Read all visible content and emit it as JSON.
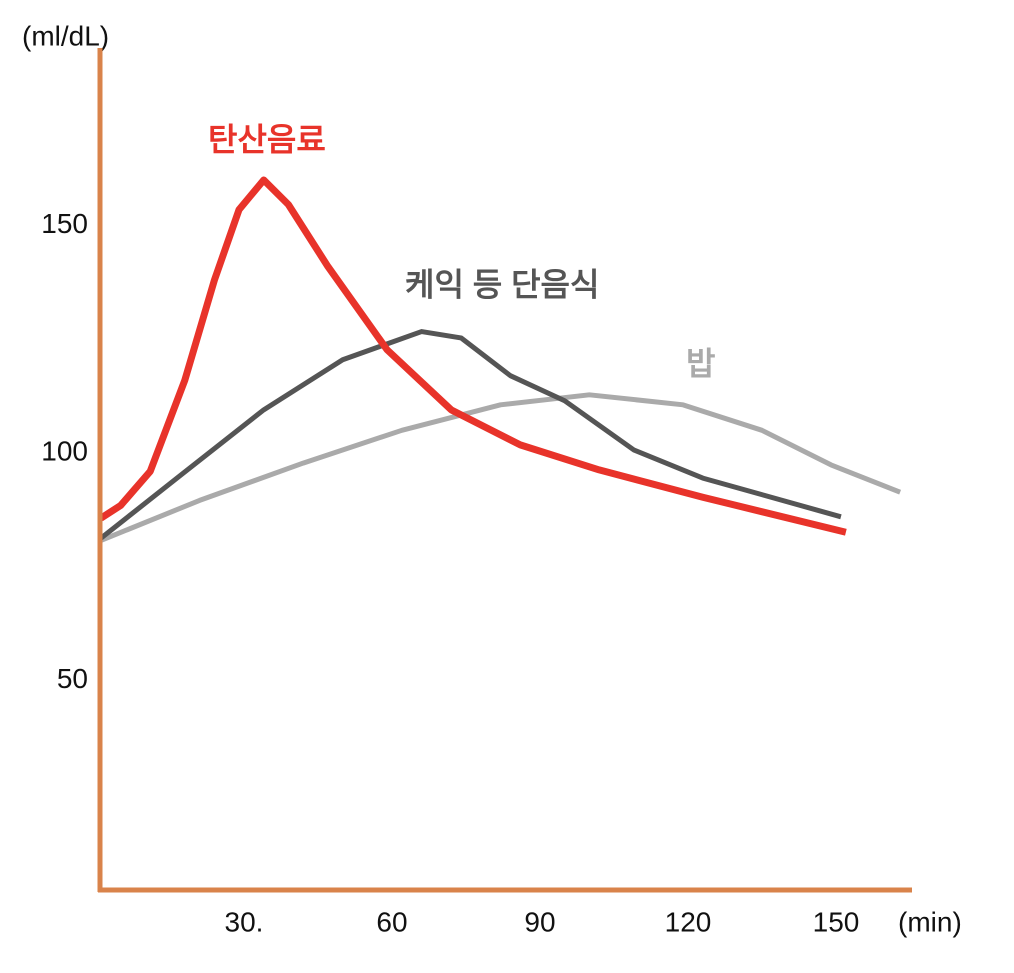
{
  "chart_data": {
    "type": "line",
    "y_label": "(ml/dL)",
    "x_label": "(min)",
    "xlim": [
      0,
      165
    ],
    "ylim": [
      4,
      189
    ],
    "xticks": [
      {
        "value": 30,
        "label": "30."
      },
      60,
      90,
      120,
      150
    ],
    "yticks": [
      50,
      100,
      150
    ],
    "axis_color": "#d9834a",
    "series": [
      {
        "name": "탄산음료",
        "color": "#e8332a",
        "x": [
          1,
          5,
          11,
          18,
          24,
          29,
          34,
          39,
          47,
          59,
          72,
          86,
          102,
          123,
          152
        ],
        "values": [
          85.7,
          88.5,
          96,
          116,
          138,
          153.5,
          160,
          154.6,
          141,
          122.7,
          109.5,
          101.8,
          96.3,
          90.3,
          82.6
        ]
      },
      {
        "name": "케익 등 단음식",
        "color": "#555555",
        "x": [
          1,
          17,
          34,
          50,
          66,
          74,
          84,
          95,
          109,
          123,
          151
        ],
        "values": [
          81.3,
          95,
          109.5,
          120.5,
          126.7,
          125.3,
          117,
          111.5,
          100.7,
          94.5,
          86
        ]
      },
      {
        "name": "밥",
        "color": "#aaaaaa",
        "x": [
          1,
          21,
          42,
          62,
          82,
          100,
          119,
          135,
          149,
          163
        ],
        "values": [
          80.8,
          89.6,
          97.8,
          105,
          110.6,
          112.8,
          110.6,
          105,
          97.4,
          91.4
        ]
      }
    ]
  }
}
